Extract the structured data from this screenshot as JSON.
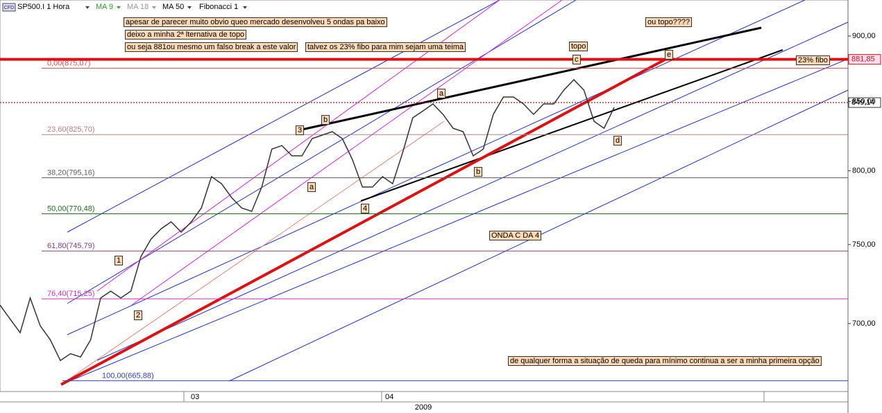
{
  "toolbar": {
    "icon": "CFD",
    "symbol": "SP500.I 1 Hora",
    "indicators": [
      "MA 9",
      "MA 18",
      "MA 50",
      "Fibonacci 1"
    ]
  },
  "chart_data": {
    "type": "line",
    "log_scale": true,
    "color": "#333333",
    "values": [
      711.4,
      702.8,
      694.4,
      715.8,
      698.6,
      690.1,
      677.7,
      681.8,
      679.8,
      690.1,
      715.8,
      720.1,
      715.8,
      720.1,
      742.2,
      753.6,
      760.4,
      765.1,
      758.2,
      765.1,
      774.4,
      795.9,
      791.0,
      781.5,
      774.4,
      772.1,
      788.7,
      815.3,
      817.8,
      810.5,
      810.5,
      822.8,
      825.3,
      827.8,
      822.8,
      807.9,
      788.7,
      788.7,
      795.9,
      791.0,
      812.9,
      837.9,
      842.9,
      848.1,
      840.4,
      830.3,
      827.8,
      810.5,
      815.3,
      840.4,
      853.3,
      853.3,
      848.1,
      840.4,
      848.1,
      848.1,
      858.4,
      866.3,
      858.4,
      835.4,
      830.3,
      845.5
    ],
    "ylim": [
      659.6,
      928.8
    ],
    "yticks": [
      {
        "value": 700,
        "label": "700,00"
      },
      {
        "value": 750,
        "label": "750,00"
      },
      {
        "value": 800,
        "label": "800,00"
      },
      {
        "value": 850,
        "label": "850,00"
      },
      {
        "value": 900,
        "label": "900,00"
      }
    ],
    "x_labels": [
      "03",
      "04",
      "2009"
    ],
    "fib_levels": [
      {
        "value": 875.07,
        "label": "0,00(875,07)",
        "color": "#e04848"
      },
      {
        "value": 825.7,
        "label": "23,60(825,70)",
        "color": "#b08080"
      },
      {
        "value": 795.16,
        "label": "38,20(795,16)",
        "color": "#606060"
      },
      {
        "value": 770.48,
        "label": "50,00(770,48)",
        "color": "#207020"
      },
      {
        "value": 745.79,
        "label": "61,80(745,79)",
        "color": "#804080"
      },
      {
        "value": 715.25,
        "label": "76,40(715,25)",
        "color": "#d030c0"
      },
      {
        "value": 665.88,
        "label": "100,00(665,88)",
        "color": "#3040d0"
      }
    ],
    "price_lines": [
      {
        "value": 881.85,
        "label": "881,85",
        "color": "#e01010"
      },
      {
        "value": 849.14,
        "label": "849,14",
        "color": "#c01010"
      }
    ],
    "annotations": [
      "apesar de parecer muito obvio queo mercado desenvolveu 5 ondas pa baixo",
      "deixo a minha 2ª lternativa de topo",
      "ou seja 881ou mesmo um falso break a este valor",
      "talvez os 23% fibo para mim sejam uma teima",
      "topo",
      "ou topo????",
      "23% fibo",
      "ONDA C DA 4",
      "de qualquer forma a situação de queda para mínimo continua a ser a minha primeira opção"
    ],
    "wave_labels": [
      "1",
      "2",
      "3",
      "b",
      "a",
      "4",
      "a",
      "b",
      "c",
      "d",
      "e"
    ]
  }
}
